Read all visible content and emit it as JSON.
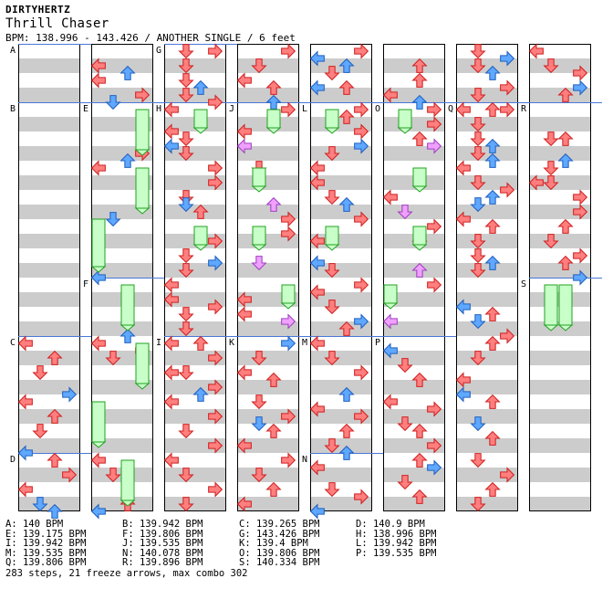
{
  "header": {
    "artist": "DIRTYHERTZ",
    "title": "Thrill Chaser",
    "info": "BPM: 138.996 - 143.426 / ANOTHER SINGLE / 6 feet"
  },
  "colors": {
    "stripe": "#cccccc",
    "measure_line": "#4a78d8",
    "arrow_red": "#ff7f7f",
    "arrow_blue": "#5fa8ff",
    "arrow_pink": "#f0a0ff",
    "freeze": "#c8ffc8"
  },
  "section_labels": [
    "A",
    "B",
    "C",
    "D",
    "E",
    "F",
    "G",
    "H",
    "I",
    "J",
    "K",
    "L",
    "M",
    "N",
    "O",
    "P",
    "Q",
    "R",
    "S"
  ],
  "bpm_table": [
    [
      "A: 140 BPM",
      "B: 139.942 BPM",
      "C: 139.265 BPM",
      "D: 140.9 BPM"
    ],
    [
      "E: 139.175 BPM",
      "F: 139.806 BPM",
      "G: 143.426 BPM",
      "H: 138.996 BPM"
    ],
    [
      "I: 139.942 BPM",
      "J: 139.535 BPM",
      "K: 139.4 BPM",
      "L: 139.942 BPM"
    ],
    [
      "M: 139.535 BPM",
      "N: 140.078 BPM",
      "O: 139.806 BPM",
      "P: 139.535 BPM"
    ],
    [
      "Q: 139.806 BPM",
      "R: 139.896 BPM",
      "S: 140.334 BPM",
      ""
    ]
  ],
  "summary": "283 steps, 21 freeze arrows, max combo 302"
}
